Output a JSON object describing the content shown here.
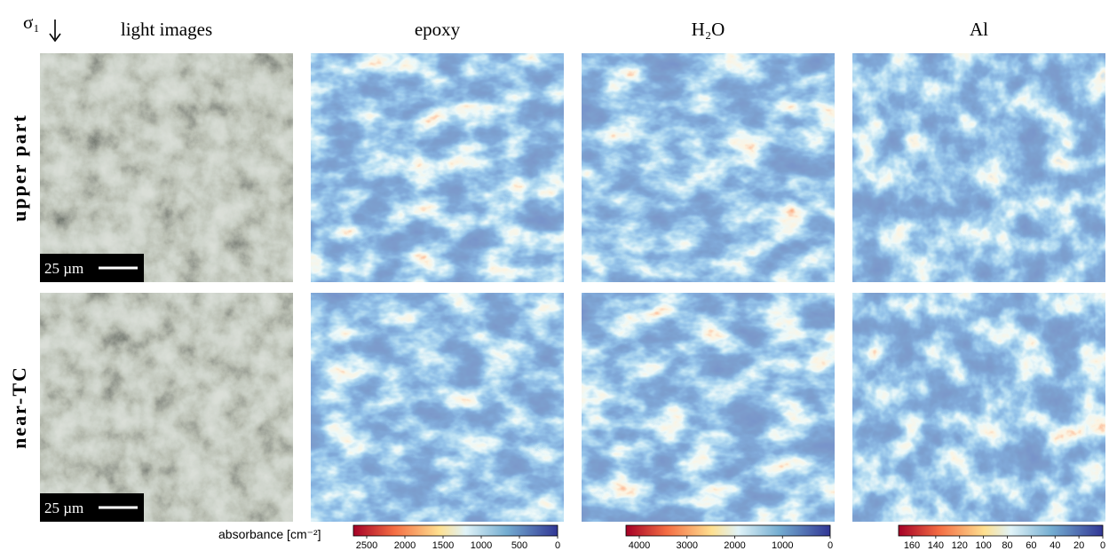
{
  "header": {
    "symbol": "σ₁",
    "columns": [
      "light images",
      "epoxy",
      "H₂O",
      "Al"
    ]
  },
  "rows": [
    "upper part",
    "near-TC"
  ],
  "scale_bar": "25 µm",
  "colorbar": {
    "label": "absorbance [cm⁻²]",
    "epoxy": [
      2500,
      2000,
      1500,
      1000,
      500,
      0
    ],
    "h2o": [
      4000,
      3000,
      2000,
      1000,
      0
    ],
    "al": [
      160,
      140,
      120,
      100,
      80,
      60,
      40,
      20,
      0
    ]
  }
}
